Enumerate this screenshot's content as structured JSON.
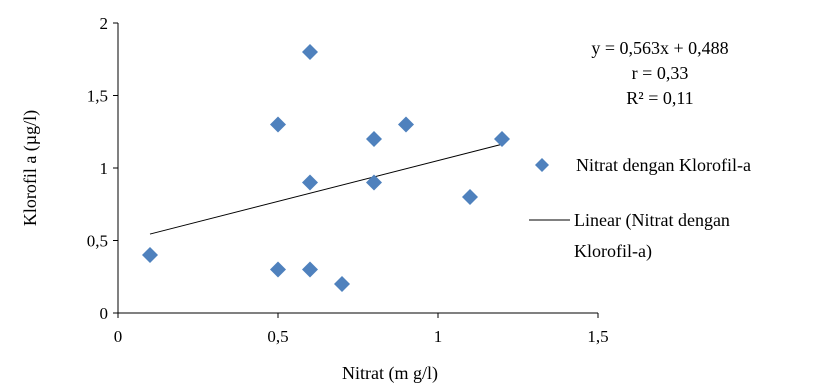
{
  "chart_data": {
    "type": "scatter",
    "xlabel": "Nitrat (m g/l)",
    "ylabel": "Klorofil a (µg/l)",
    "xlim": [
      0,
      1.5
    ],
    "ylim": [
      0,
      2
    ],
    "x_ticks": [
      "0",
      "0,5",
      "1",
      "1,5"
    ],
    "y_ticks": [
      "0",
      "0,5",
      "1",
      "1,5",
      "2"
    ],
    "grid": false,
    "marker_color": "#4f81bd",
    "series": [
      {
        "name": "Nitrat dengan Klorofil-a",
        "points": [
          {
            "x": 0.1,
            "y": 0.4
          },
          {
            "x": 0.5,
            "y": 1.3
          },
          {
            "x": 0.5,
            "y": 0.3
          },
          {
            "x": 0.6,
            "y": 1.8
          },
          {
            "x": 0.6,
            "y": 0.9
          },
          {
            "x": 0.6,
            "y": 0.3
          },
          {
            "x": 0.7,
            "y": 0.2
          },
          {
            "x": 0.8,
            "y": 1.2
          },
          {
            "x": 0.8,
            "y": 0.9
          },
          {
            "x": 0.9,
            "y": 1.3
          },
          {
            "x": 1.1,
            "y": 0.8
          },
          {
            "x": 1.2,
            "y": 1.2
          }
        ]
      }
    ],
    "trendline": {
      "name": "Linear (Nitrat dengan Klorofil-a)",
      "slope": 0.563,
      "intercept": 0.488,
      "x_range": [
        0.1,
        1.2
      ]
    },
    "annotations": {
      "equation": "y = 0,563x + 0,488",
      "r": "r = 0,33",
      "r2": "R² = 0,11"
    },
    "legend": {
      "position": "right",
      "marker_label": "Nitrat dengan Klorofil-a",
      "line_label_1": "Linear (Nitrat dengan",
      "line_label_2": "Klorofil-a)"
    }
  }
}
